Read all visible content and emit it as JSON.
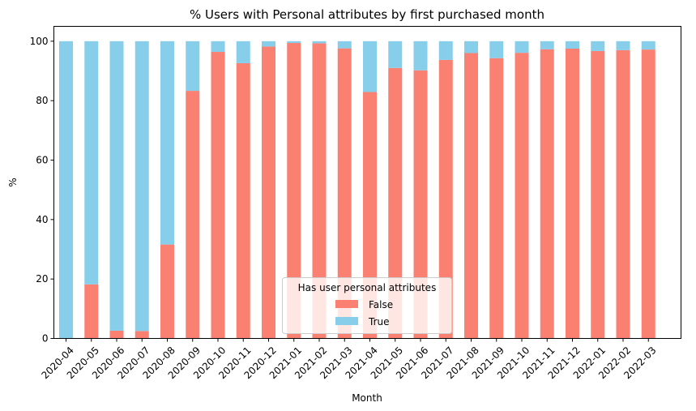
{
  "chart_data": {
    "type": "bar",
    "stacked": true,
    "title": "% Users with Personal attributes by first purchased month",
    "xlabel": "Month",
    "ylabel": "%",
    "ylim": [
      0,
      105
    ],
    "yticks": [
      0,
      20,
      40,
      60,
      80,
      100
    ],
    "categories": [
      "2020-04",
      "2020-05",
      "2020-06",
      "2020-07",
      "2020-08",
      "2020-09",
      "2020-10",
      "2020-11",
      "2020-12",
      "2021-01",
      "2021-02",
      "2021-03",
      "2021-04",
      "2021-05",
      "2021-06",
      "2021-07",
      "2021-08",
      "2021-09",
      "2021-10",
      "2021-11",
      "2021-12",
      "2022-01",
      "2022-02",
      "2022-03"
    ],
    "series": [
      {
        "name": "False",
        "color": "#fa8072",
        "values": [
          0,
          18.2,
          2.6,
          2.5,
          31.6,
          83.3,
          96.4,
          92.6,
          98.2,
          99.4,
          99.3,
          97.6,
          82.9,
          91.0,
          90.2,
          93.7,
          96.0,
          94.3,
          96.1,
          97.3,
          97.5,
          96.7,
          97.0,
          97.2
        ]
      },
      {
        "name": "True",
        "color": "#87ceeb",
        "values": [
          100,
          81.8,
          97.4,
          97.5,
          68.4,
          16.7,
          3.6,
          7.4,
          1.8,
          0.6,
          0.7,
          2.4,
          17.1,
          9.0,
          9.8,
          6.3,
          4.0,
          5.7,
          3.9,
          2.7,
          2.5,
          3.3,
          3.0,
          2.8
        ]
      }
    ],
    "legend": {
      "title": "Has user personal attributes",
      "placement": "lower-center"
    }
  }
}
